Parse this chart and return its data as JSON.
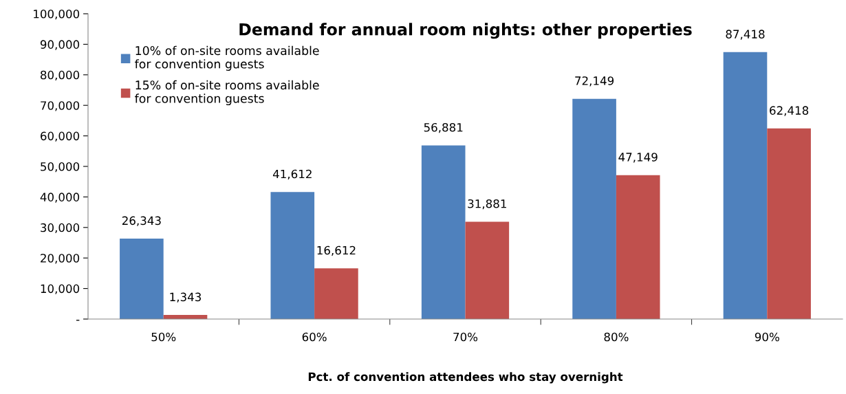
{
  "chart_data": {
    "type": "bar",
    "title": "Demand for annual room nights: other properties",
    "xlabel": "Pct. of convention attendees who stay overnight",
    "categories": [
      "50%",
      "60%",
      "70%",
      "80%",
      "90%"
    ],
    "series": [
      {
        "name": "10% of on-site rooms available\nfor convention guests",
        "color": "#4f81bd",
        "values": [
          26343,
          41612,
          56881,
          72149,
          87418
        ],
        "value_labels": [
          "26,343",
          "41,612",
          "56,881",
          "72,149",
          "87,418"
        ]
      },
      {
        "name": "15% of on-site rooms available\nfor convention guests",
        "color": "#c0504d",
        "values": [
          1343,
          16612,
          31881,
          47149,
          62418
        ],
        "value_labels": [
          "1,343",
          "16,612",
          "31,881",
          "47,149",
          "62,418"
        ]
      }
    ],
    "ylim": [
      0,
      100000
    ],
    "yticks": [
      {
        "value": 0,
        "label": "-"
      },
      {
        "value": 10000,
        "label": "10,000"
      },
      {
        "value": 20000,
        "label": "20,000"
      },
      {
        "value": 30000,
        "label": "30,000"
      },
      {
        "value": 40000,
        "label": "40,000"
      },
      {
        "value": 50000,
        "label": "50,000"
      },
      {
        "value": 60000,
        "label": "60,000"
      },
      {
        "value": 70000,
        "label": "70,000"
      },
      {
        "value": 80000,
        "label": "80,000"
      },
      {
        "value": 90000,
        "label": "90,000"
      },
      {
        "value": 100000,
        "label": "100,000"
      }
    ],
    "grid": false,
    "legend": "top left"
  }
}
